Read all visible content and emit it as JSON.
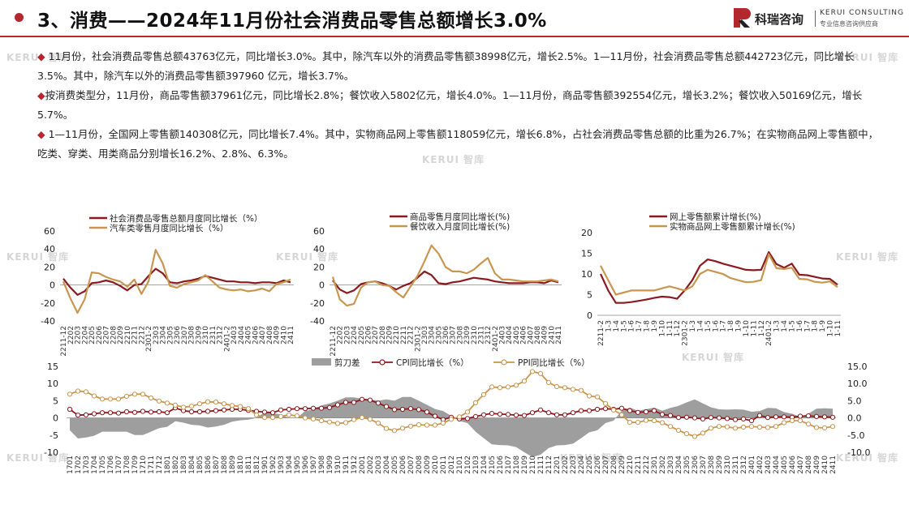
{
  "header": {
    "title": "3、消费——2024年11月份社会消费品零售总额增长3.0%"
  },
  "logo": {
    "cn": "科瑞咨询",
    "en": "KERUI CONSULTING",
    "sub": "专业信息咨询供应商",
    "watermark": "KERUI 智库"
  },
  "bullets": [
    {
      "mark": "◆",
      "text": " 11月份，社会消费品零售总额43763亿元，同比增长3.0%。其中，除汽车以外的消费品零售额38998亿元，增长2.5%。1—11月份，社会消费品零售总额442723亿元，同比增长3.5%。其中，除汽车以外的消费品零售额397960 亿元，增长3.7%。"
    },
    {
      "mark": "◆",
      "text": "按消费类型分，11月份，商品零售额37961亿元，同比增长2.8%；餐饮收入5802亿元，增长4.0%。1—11月份，商品零售额392554亿元，增长3.2%；餐饮收入50169亿元，增长5.7%。"
    },
    {
      "mark": "◆",
      "text": " 1—11月份，全国网上零售额140308亿元，同比增长7.4%。其中，实物商品网上零售额118059亿元，增长6.8%，占社会消费品零售总额的比重为26.7%；在实物商品网上零售额中，吃类、穿类、用类商品分别增长16.2%、2.8%、6.3%。"
    }
  ],
  "chart_data": [
    {
      "type": "line",
      "grid": false,
      "legend": "top",
      "x": [
        "2211-12",
        "2202",
        "2203",
        "2204",
        "2205",
        "2206",
        "2207",
        "2208",
        "2209",
        "2210",
        "2211",
        "2212",
        "2301-2",
        "2303",
        "2304",
        "2305",
        "2306",
        "2307",
        "2308",
        "2309",
        "2310",
        "2311",
        "2312",
        "2401-2",
        "2403",
        "2404",
        "2405",
        "2406",
        "2407",
        "2408",
        "2409",
        "2410",
        "2411"
      ],
      "ylim": [
        -40,
        60
      ],
      "yticks": [
        "60",
        "40",
        "20",
        "0",
        "-20",
        "-40"
      ],
      "series": [
        {
          "name": "社会消费品零售总额月度同比增长（%）",
          "color": "#8b1a1f",
          "values": [
            7,
            -3,
            -11,
            -7,
            2,
            3,
            5,
            3,
            -1,
            -6,
            0,
            1,
            10,
            18,
            13,
            3,
            2,
            4,
            5,
            7,
            10,
            8,
            6,
            4,
            4,
            3,
            3,
            2,
            3,
            3,
            2,
            5,
            3
          ]
        },
        {
          "name": "汽车类零售月度同比增长（%）",
          "color": "#c8964f",
          "values": [
            4,
            -15,
            -31,
            -16,
            14,
            13,
            9,
            6,
            4,
            -2,
            6,
            -10,
            4,
            39,
            24,
            -1,
            -3,
            1,
            3,
            5,
            11,
            4,
            -3,
            -5,
            -6,
            -5,
            -7,
            -6,
            -4,
            -7,
            1,
            3,
            6
          ]
        }
      ]
    },
    {
      "type": "line",
      "grid": false,
      "legend": "top",
      "x": [
        "2211-12",
        "2202",
        "2203",
        "2204",
        "2205",
        "2206",
        "2207",
        "2208",
        "2209",
        "2210",
        "2211",
        "2212",
        "2301-2",
        "2303",
        "2304",
        "2305",
        "2306",
        "2307",
        "2308",
        "2309",
        "2310",
        "2311",
        "2312",
        "2401-2",
        "2403",
        "2404",
        "2405",
        "2406",
        "2407",
        "2408",
        "2409",
        "2410",
        "2411"
      ],
      "ylim": [
        -40,
        60
      ],
      "yticks": [
        "60",
        "40",
        "20",
        "0",
        "-20",
        "-40"
      ],
      "series": [
        {
          "name": "商品零售月度同比增长(%)",
          "color": "#8b1a1f",
          "values": [
            5,
            -5,
            -9,
            -6,
            1,
            3,
            4,
            2,
            -1,
            -5,
            -1,
            2,
            8,
            15,
            11,
            2,
            1,
            3,
            4,
            6,
            8,
            7,
            6,
            4,
            3,
            2,
            2,
            2,
            3,
            3,
            2,
            5,
            3
          ]
        },
        {
          "name": "餐饮收入月度同比增长(%)",
          "color": "#c8964f",
          "values": [
            9,
            -16,
            -23,
            -21,
            -3,
            3,
            4,
            0,
            -1,
            -8,
            -14,
            -2,
            10,
            26,
            44,
            35,
            20,
            15,
            15,
            13,
            17,
            24,
            30,
            13,
            6,
            6,
            5,
            4,
            4,
            4,
            5,
            6,
            4
          ]
        }
      ]
    },
    {
      "type": "line",
      "grid": false,
      "legend": "top",
      "x": [
        "2211-2",
        "1-3",
        "1-4",
        "1-5",
        "1-6",
        "1-7",
        "1-8",
        "1-9",
        "1-10",
        "1-11",
        "1-12",
        "2301-2",
        "1-3",
        "1-4",
        "1-5",
        "1-6",
        "1-7",
        "1-8",
        "1-9",
        "1-10",
        "1-11",
        "1-12",
        "2401-2",
        "1-3",
        "1-4",
        "1-5",
        "1-6",
        "1-7",
        "1-8",
        "1-9",
        "1-10",
        "1-11"
      ],
      "ylim": [
        0,
        20
      ],
      "yticks": [
        "20",
        "15",
        "10",
        "5",
        "0"
      ],
      "series": [
        {
          "name": "网上零售额累计增长(%)",
          "color": "#8b1a1f",
          "values": [
            10,
            6,
            3,
            3,
            3.2,
            3.5,
            3.8,
            4.2,
            4.5,
            4.4,
            4,
            6,
            8.5,
            12,
            13.5,
            13.1,
            12.5,
            12,
            11.5,
            11,
            10.9,
            11,
            15.3,
            12.4,
            11.5,
            12.5,
            9.8,
            9.7,
            9.3,
            8.9,
            8.8,
            7.4
          ]
        },
        {
          "name": "实物商品网上零售额累计增长(%)",
          "color": "#c8964f",
          "values": [
            12,
            8.5,
            5,
            5.5,
            6,
            6,
            6,
            6,
            6.5,
            7,
            6.5,
            6,
            7,
            10,
            11,
            10.5,
            10,
            9,
            8.5,
            8,
            8.1,
            8.5,
            14.8,
            11.4,
            11.2,
            11.5,
            8.8,
            8.7,
            8.1,
            7.9,
            8.2,
            6.8
          ]
        }
      ]
    },
    {
      "type": "line",
      "grid": false,
      "legend": "top",
      "x": [
        "1701",
        "1702",
        "1703",
        "1704",
        "1705",
        "1706",
        "1707",
        "1708",
        "1709",
        "1710",
        "1711",
        "1712",
        "1801",
        "1802",
        "1803",
        "1804",
        "1805",
        "1806",
        "1807",
        "1808",
        "1809",
        "1810",
        "1811",
        "1812",
        "1901",
        "1902",
        "1903",
        "1904",
        "1905",
        "1906",
        "1907",
        "1908",
        "1909",
        "1910",
        "1911",
        "1912",
        "2001",
        "2002",
        "2003",
        "2004",
        "2005",
        "2006",
        "2007",
        "2008",
        "2009",
        "2010",
        "2011",
        "2012",
        "2101",
        "2102",
        "2103",
        "2104",
        "2105",
        "2106",
        "2107",
        "2108",
        "2109",
        "2110",
        "2111",
        "2112",
        "2201",
        "2202",
        "2203",
        "2204",
        "2205",
        "2206",
        "2207",
        "2208",
        "2209",
        "2210",
        "2211",
        "2212",
        "2301",
        "2302",
        "2303",
        "2304",
        "2305",
        "2306",
        "2307",
        "2308",
        "2309",
        "2310",
        "2311",
        "2312",
        "2401",
        "2402",
        "2403",
        "2404",
        "2405",
        "2406",
        "2407",
        "2408",
        "2409",
        "2410",
        "2411"
      ],
      "y_left": {
        "ylim": [
          -10,
          15
        ],
        "yticks": [
          "15",
          "10",
          "5",
          "0",
          "-5",
          "-10"
        ]
      },
      "y_right": {
        "ylim": [
          -10,
          15
        ],
        "yticks": [
          "15.0",
          "10.0",
          "5.0",
          "0.0",
          "-5.0",
          "-10.0"
        ]
      },
      "series": [
        {
          "name": "剪刀差",
          "kind": "area",
          "color": "#9e9e9e",
          "values": [
            -3.6,
            -6.0,
            -5.7,
            -5.2,
            -4.0,
            -4.0,
            -4.0,
            -4.0,
            -5.0,
            -5.0,
            -4.0,
            -3.0,
            -2.6,
            -1.0,
            -1.4,
            -2.0,
            -2.2,
            -2.8,
            -2.5,
            -2.0,
            -1.1,
            -0.7,
            -0.5,
            0.0,
            1.6,
            1.4,
            1.0,
            0.0,
            0.0,
            2.0,
            2.5,
            3.6,
            4.2,
            5.0,
            6.0,
            6.0,
            5.6,
            5.4,
            5.0,
            5.4,
            5.0,
            6.1,
            6.1,
            5.0,
            3.8,
            2.6,
            2.0,
            0.6,
            -0.9,
            -1.5,
            -4.0,
            -5.9,
            -7.7,
            -7.9,
            -8.0,
            -8.5,
            -10.0,
            -11.4,
            -10.7,
            -8.8,
            -8.0,
            -7.9,
            -7.5,
            -5.9,
            -4.2,
            -3.6,
            -1.5,
            -0.8,
            2.1,
            3.0,
            2.1,
            2.5,
            3.0,
            2.1,
            2.9,
            3.5,
            4.5,
            5.4,
            4.2,
            3.1,
            2.5,
            2.4,
            2.5,
            2.4,
            1.8,
            2.0,
            2.9,
            2.8,
            1.7,
            1.2,
            0.3,
            1.2,
            2.7,
            2.8,
            2.7
          ]
        },
        {
          "name": "CPI同比增长（%）",
          "kind": "line",
          "marker": "circle",
          "color": "#8b1a1f",
          "values": [
            2.5,
            0.8,
            0.9,
            1.2,
            1.5,
            1.5,
            1.4,
            1.8,
            1.6,
            1.9,
            1.7,
            1.8,
            1.5,
            2.9,
            2.1,
            1.8,
            1.8,
            1.9,
            2.1,
            2.3,
            2.5,
            2.5,
            2.2,
            1.9,
            1.7,
            1.5,
            2.3,
            2.5,
            2.7,
            2.7,
            2.8,
            2.8,
            3.0,
            3.8,
            4.5,
            4.5,
            5.4,
            5.2,
            4.3,
            3.3,
            2.4,
            2.5,
            2.7,
            2.4,
            1.7,
            0.5,
            -0.5,
            0.2,
            -0.3,
            -0.2,
            0.4,
            0.9,
            1.3,
            1.1,
            1.0,
            0.8,
            0.7,
            1.5,
            2.3,
            1.5,
            0.9,
            0.9,
            1.5,
            2.1,
            2.1,
            2.5,
            2.7,
            2.5,
            2.8,
            2.1,
            1.6,
            1.8,
            2.1,
            1.0,
            0.7,
            0.1,
            0.2,
            0.0,
            -0.3,
            0.1,
            0.0,
            -0.2,
            -0.5,
            -0.3,
            -0.8,
            0.7,
            0.1,
            0.3,
            0.3,
            0.2,
            0.5,
            0.6,
            0.4,
            0.3,
            0.2
          ]
        },
        {
          "name": "PPI同比增长（%）",
          "kind": "line",
          "marker": "circle",
          "color": "#c8964f",
          "values": [
            6.9,
            7.8,
            7.6,
            6.4,
            5.5,
            5.5,
            5.5,
            6.3,
            6.9,
            6.9,
            5.8,
            4.9,
            4.3,
            3.7,
            3.1,
            3.4,
            4.1,
            4.7,
            4.6,
            4.1,
            3.6,
            3.3,
            2.7,
            0.9,
            0.1,
            0.1,
            0.4,
            0.9,
            0.6,
            0.0,
            -0.3,
            -0.8,
            -1.2,
            -1.6,
            -1.4,
            -0.5,
            0.1,
            -0.4,
            -1.5,
            -3.1,
            -3.7,
            -3.0,
            -2.4,
            -2.0,
            -2.1,
            -2.1,
            -1.5,
            -0.4,
            0.3,
            1.7,
            4.4,
            6.8,
            9.0,
            8.8,
            9.0,
            9.5,
            10.7,
            13.5,
            12.9,
            10.3,
            9.1,
            8.8,
            8.3,
            8.0,
            6.4,
            6.1,
            4.2,
            2.3,
            0.9,
            -1.3,
            -1.3,
            -0.7,
            -0.8,
            -1.4,
            -2.5,
            -3.6,
            -4.6,
            -5.4,
            -4.4,
            -3.0,
            -2.5,
            -2.6,
            -3.0,
            -2.7,
            -2.5,
            -2.7,
            -2.8,
            -2.5,
            -1.4,
            -0.8,
            -0.8,
            -1.8,
            -2.8,
            -2.9,
            -2.5
          ]
        }
      ]
    }
  ]
}
